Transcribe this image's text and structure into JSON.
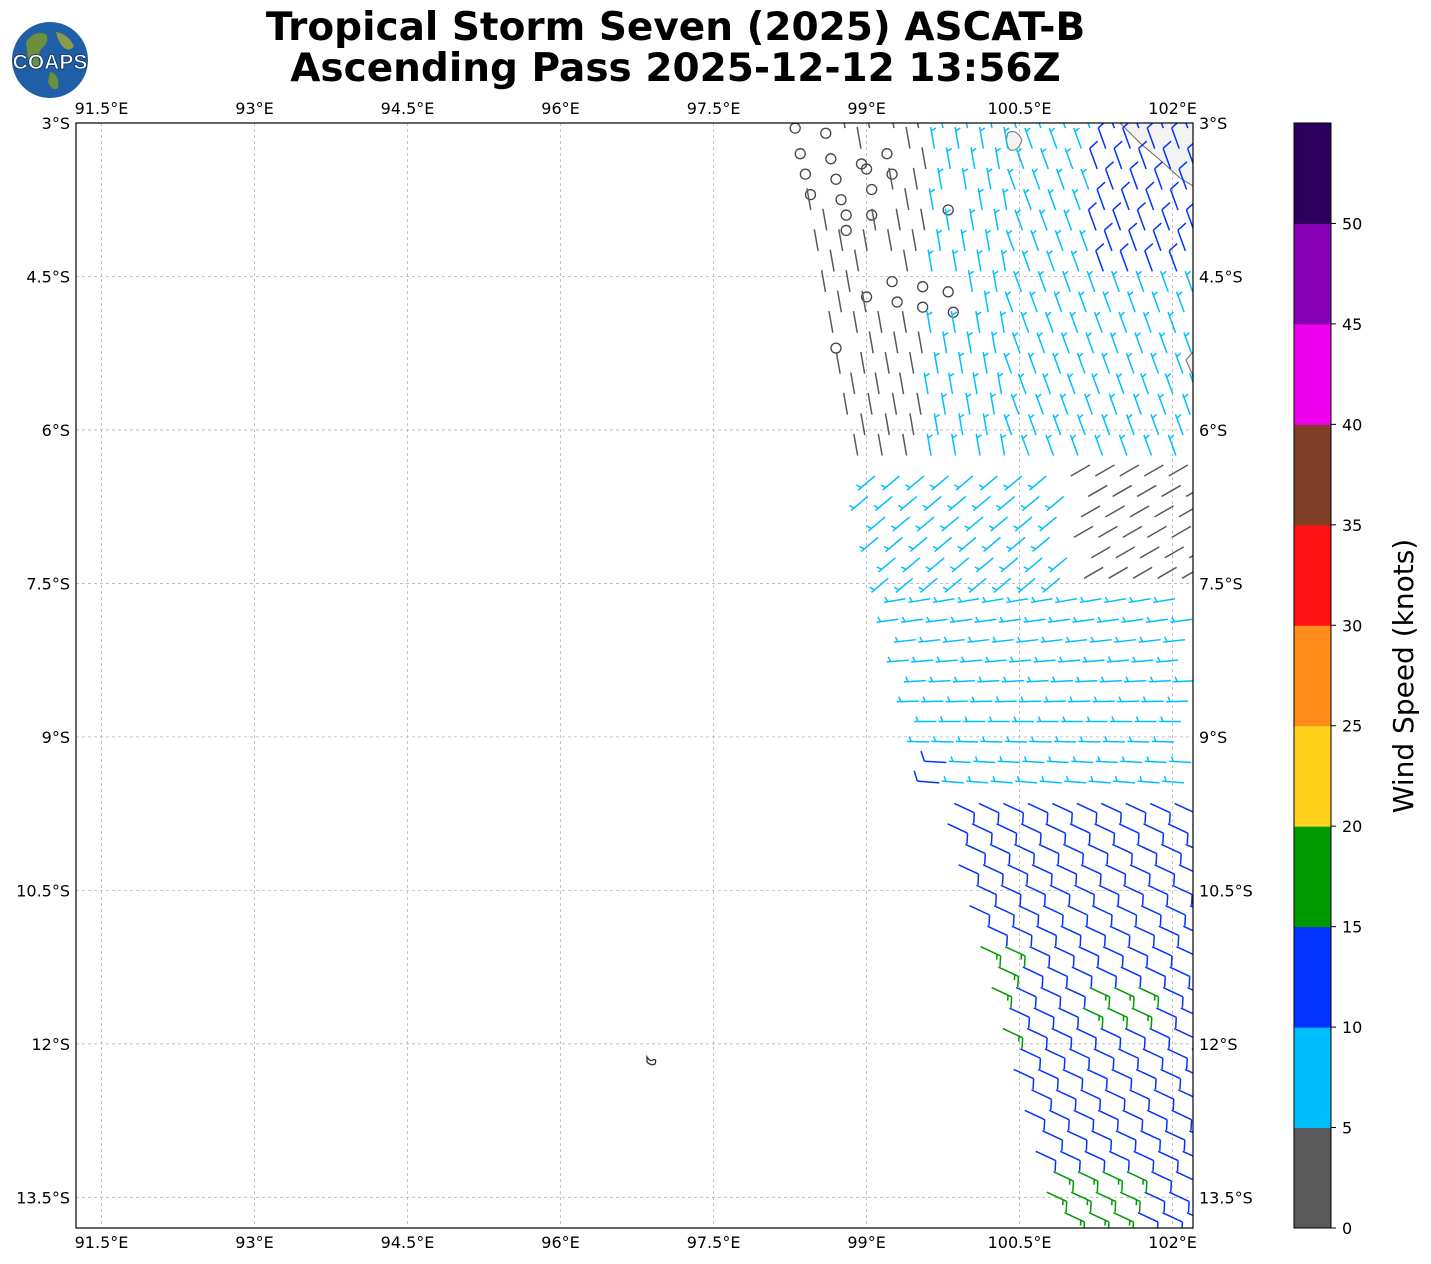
{
  "title_line1": "Tropical Storm Seven (2025) ASCAT-B",
  "title_line2": "Ascending Pass 2025-12-12 13:56Z",
  "logo_text": "COAPS",
  "map": {
    "lon_ticks": [
      "91.5°E",
      "93°E",
      "94.5°E",
      "96°E",
      "97.5°E",
      "99°E",
      "100.5°E",
      "102°E"
    ],
    "lat_ticks": [
      "3°S",
      "4.5°S",
      "6°S",
      "7.5°S",
      "9°S",
      "10.5°S",
      "12°S",
      "13.5°S"
    ],
    "lon_range": [
      91.25,
      102.2
    ],
    "lat_range": [
      -3.0,
      -13.8
    ],
    "gridlines": true
  },
  "colorbar": {
    "label": "Wind Speed (knots)",
    "ticks": [
      "0",
      "5",
      "10",
      "15",
      "20",
      "25",
      "30",
      "35",
      "40",
      "45",
      "50"
    ],
    "bins": [
      {
        "min": 0,
        "max": 5,
        "color": "#595959"
      },
      {
        "min": 5,
        "max": 10,
        "color": "#00bfff"
      },
      {
        "min": 10,
        "max": 15,
        "color": "#0033ff"
      },
      {
        "min": 15,
        "max": 20,
        "color": "#009900"
      },
      {
        "min": 20,
        "max": 25,
        "color": "#ffd11a"
      },
      {
        "min": 25,
        "max": 30,
        "color": "#ff8c1a"
      },
      {
        "min": 30,
        "max": 35,
        "color": "#ff1111"
      },
      {
        "min": 35,
        "max": 40,
        "color": "#7f3f27"
      },
      {
        "min": 40,
        "max": 45,
        "color": "#ee00ee"
      },
      {
        "min": 45,
        "max": 50,
        "color": "#8800b5"
      },
      {
        "min": 50,
        "max": 55,
        "color": "#2d0060"
      }
    ]
  }
}
